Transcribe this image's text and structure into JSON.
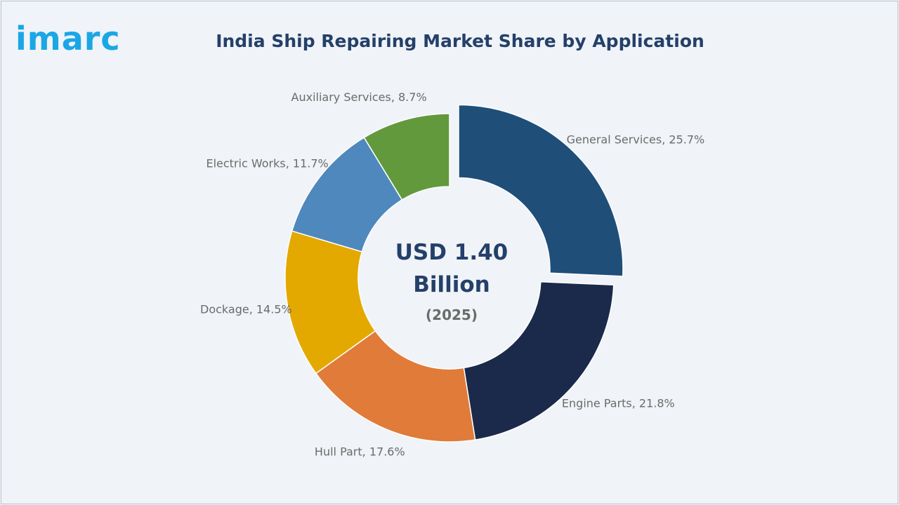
{
  "logo": {
    "text": "imarc",
    "color": "#1aa7e6"
  },
  "header": {
    "title": "India Ship Repairing Market Share by Application"
  },
  "chart_data": {
    "type": "pie",
    "variant": "donut",
    "title": "India Ship Repairing Market Share by Application",
    "center_label": {
      "value_line1": "USD 1.40",
      "value_line2": "Billion",
      "year": "(2025)"
    },
    "unit": "%",
    "categories": [
      "General Services",
      "Engine Parts",
      "Hull Part",
      "Dockage",
      "Electric Works",
      "Auxiliary Services"
    ],
    "values": [
      25.7,
      21.8,
      17.6,
      14.5,
      11.7,
      8.7
    ],
    "labels": [
      "General Services, 25.7%",
      "Engine Parts, 21.8%",
      "Hull Part, 17.6%",
      "Dockage, 14.5%",
      "Electric Works, 11.7%",
      "Auxiliary Services, 8.7%"
    ],
    "colors": [
      "#1f4e79",
      "#1b2a4a",
      "#e07b39",
      "#e3a900",
      "#4f88bd",
      "#63993d"
    ],
    "exploded": [
      "General Services"
    ],
    "start_angle_deg": 0,
    "direction": "clockwise",
    "legend": "none"
  }
}
